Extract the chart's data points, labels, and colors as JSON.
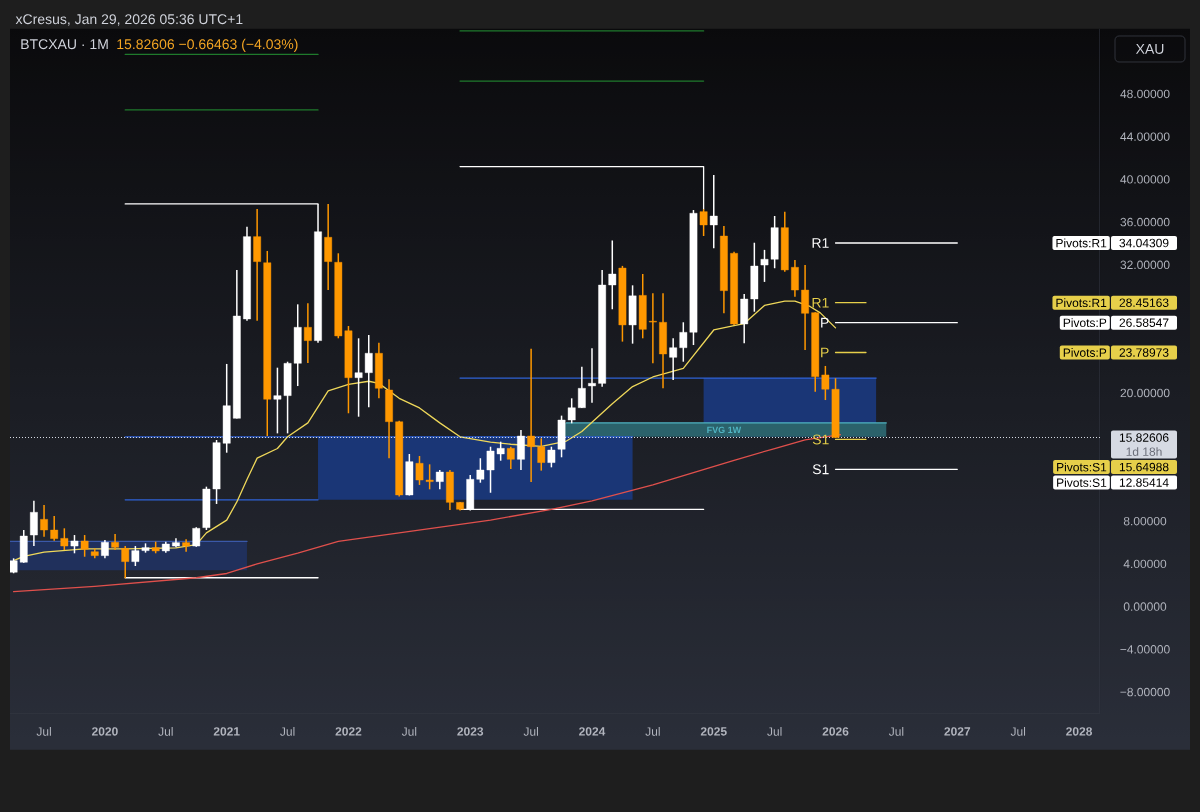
{
  "chart_data": {
    "type": "candlestick",
    "title": "BTCXAU · 1M",
    "subtitle": "15.82606 −0.66463 (−4.03%)",
    "ylabel": "XAU",
    "xlim": [
      "2019-03-21",
      "2028-03-03"
    ],
    "xticks": [
      {
        "value": "2019-07",
        "label": "Jul"
      },
      "2020",
      {
        "value": "2020-07",
        "label": "Jul"
      },
      "2021",
      {
        "value": "2021-07",
        "label": "Jul"
      },
      "2022",
      {
        "value": "2022-07",
        "label": "Jul"
      },
      "2023",
      {
        "value": "2023-07",
        "label": "Jul"
      },
      "2024",
      {
        "value": "2024-07",
        "label": "Jul"
      },
      "2025",
      {
        "value": "2025-07",
        "label": "Jul"
      },
      "2026",
      {
        "value": "2026-07",
        "label": "Jul"
      },
      "2027",
      {
        "value": "2027-07",
        "label": "Jul"
      },
      "2028"
    ],
    "ylim": [
      -10,
      54.1
    ],
    "yticks": [
      {
        "value": -8,
        "label": "−8.00000"
      },
      {
        "value": -4,
        "label": "−4.00000"
      },
      {
        "value": 0,
        "label": "0.00000"
      },
      {
        "value": 4,
        "label": "4.00000"
      },
      {
        "value": 8,
        "label": "8.00000"
      },
      {
        "value": 20,
        "label": "20.00000"
      },
      {
        "value": 32,
        "label": "32.00000"
      },
      {
        "value": 36,
        "label": "36.00000"
      },
      {
        "value": 40,
        "label": "40.00000"
      },
      {
        "value": 44,
        "label": "44.00000"
      },
      {
        "value": 48,
        "label": "48.00000"
      }
    ],
    "annotations": [
      "xCresus, Jan 29, 2026 05:36 UTC+1",
      "1d 18h",
      {
        "text": "R1",
        "x": "2026-01",
        "y": 34.04309
      },
      {
        "text": "R1",
        "x": "2026-01",
        "y": 28.45163
      },
      {
        "text": "P",
        "x": "2026-01",
        "y": 26.58547
      },
      {
        "text": "P",
        "x": "2026-01",
        "y": 23.78973
      },
      {
        "text": "S1",
        "x": "2026-01",
        "y": 15.64988
      },
      {
        "text": "S1",
        "x": "2026-01",
        "y": 12.85414
      },
      "34.04309",
      "28.45163",
      "26.58547",
      "23.78973",
      "15.64988",
      "12.85414"
    ],
    "ref_lines": [
      {
        "axis": "y",
        "value": 15.82606,
        "label": "15.82606",
        "line_style": "dotted",
        "color": "#d6dae3"
      }
    ],
    "series": [
      {
        "type": "line",
        "x": [
          "2019-03-21",
          "2021-03"
        ],
        "values": [
          6.1,
          6.1
        ],
        "lower": [
          3.4,
          3.4
        ],
        "upper": [
          6.1,
          6.1
        ],
        "color": "#3a58a8"
      },
      {
        "type": "line",
        "x": [
          "2020-03",
          "2021-10",
          "2024-05"
        ],
        "values": [
          15.9,
          15.9,
          15.9
        ],
        "lower": [
          null,
          10.0,
          10.0
        ],
        "upper": [
          null,
          15.9,
          15.9
        ],
        "color": "#2f62d6"
      },
      {
        "type": "line",
        "x": [
          "2022-12",
          "2024-12",
          "2026-05"
        ],
        "values": [
          21.4,
          21.4,
          21.4
        ],
        "lower": [
          null,
          15.9,
          15.9
        ],
        "upper": [
          null,
          21.4,
          21.4
        ],
        "color": "#2f62d6"
      },
      {
        "type": "line",
        "name": "FVG 1W",
        "x": [
          "2023-10",
          "2023-10-16",
          "2026-06"
        ],
        "values": [
          null,
          17.2,
          17.2
        ],
        "lower": [
          15.9,
          15.9,
          15.9
        ],
        "upper": [
          17.2,
          17.2,
          17.2
        ],
        "color": "#4fb3c2"
      },
      {
        "type": "line",
        "x": [
          "2020-03",
          "2021-10"
        ],
        "values": [
          10.0,
          10.0
        ],
        "color": "#2f62d6"
      },
      {
        "type": "line",
        "x": [
          "2020-03",
          "2021-10"
        ],
        "values": [
          37.7,
          37.7
        ],
        "color": "#ffffff"
      },
      {
        "type": "line",
        "x": [
          "2020-03",
          "2021-10"
        ],
        "values": [
          2.7,
          2.7
        ],
        "color": "#ffffff"
      },
      {
        "type": "line",
        "x": [
          "2022-12",
          "2024-12",
          "2024-12"
        ],
        "values": [
          41.2,
          41.2,
          37.2
        ],
        "color": "#ffffff"
      },
      {
        "type": "line",
        "x": [
          "2022-12",
          "2024-12"
        ],
        "values": [
          9.1,
          9.1
        ],
        "color": "#ffffff"
      },
      {
        "type": "line",
        "x": [
          "2020-03",
          "2021-10"
        ],
        "values": [
          51.7,
          51.7
        ],
        "color": "#1f7a2c"
      },
      {
        "type": "line",
        "x": [
          "2020-03",
          "2021-10"
        ],
        "values": [
          46.5,
          46.5
        ],
        "color": "#1f7a2c"
      },
      {
        "type": "line",
        "x": [
          "2022-12",
          "2024-12"
        ],
        "values": [
          53.9,
          53.9
        ],
        "color": "#1f7a2c"
      },
      {
        "type": "line",
        "x": [
          "2022-12",
          "2024-12"
        ],
        "values": [
          49.2,
          49.2
        ],
        "color": "#1f7a2c"
      },
      {
        "type": "line",
        "x": [
          "2019-04",
          "2019-05",
          "2019-07",
          "2019-11",
          "2020-03",
          "2020-08",
          "2020-10",
          "2020-11",
          "2021-01",
          "2021-02",
          "2021-03",
          "2021-04",
          "2021-06",
          "2021-07",
          "2021-09",
          "2021-11",
          "2022-01",
          "2022-03",
          "2022-04",
          "2022-06",
          "2022-08",
          "2022-10",
          "2022-12",
          "2023-03",
          "2023-05",
          "2023-08",
          "2023-10-16",
          "2023-12",
          "2024-03",
          "2024-05",
          "2024-07",
          "2024-10",
          "2025-01",
          "2025-03",
          "2025-04",
          "2025-06",
          "2025-08",
          "2025-09",
          "2025-10-16",
          "2025-11-16",
          "2026-01"
        ],
        "values": [
          4.3,
          4.7,
          5.1,
          5.4,
          5.4,
          5.5,
          5.8,
          6.9,
          8.1,
          9.8,
          11.9,
          13.9,
          14.8,
          15.9,
          17.2,
          20.2,
          20.8,
          21.1,
          20.9,
          19.5,
          18.6,
          17.2,
          15.9,
          15.4,
          15.2,
          15.0,
          15.5,
          16.4,
          19.0,
          20.6,
          21.5,
          22.3,
          25.9,
          26.3,
          26.5,
          28.2,
          28.6,
          28.6,
          28.1,
          27.5,
          26.1
        ],
        "color": "#efd85a"
      },
      {
        "type": "line",
        "x": [
          "2019-04",
          "2019-12",
          "2020-10",
          "2021-01",
          "2021-04",
          "2021-08",
          "2021-12",
          "2023-03",
          "2023-09",
          "2024-01",
          "2024-07",
          "2025-03",
          "2025-07",
          "2025-10",
          "2026-01-16"
        ],
        "values": [
          1.4,
          1.9,
          2.7,
          3.1,
          4.0,
          5.0,
          6.1,
          8.1,
          9.1,
          9.9,
          11.4,
          13.7,
          14.8,
          15.6,
          16.1
        ],
        "color": "#e0504c"
      },
      {
        "type": "line",
        "name": "Pivots:R1",
        "x": [
          "2026-01",
          "2027-01"
        ],
        "values": [
          34.04309,
          34.04309
        ],
        "color": "#ffffff"
      },
      {
        "type": "line",
        "name": "Pivots:R1",
        "x": [
          "2026-01",
          "2026-04"
        ],
        "values": [
          28.45163,
          28.45163
        ],
        "color": "#e6cf4a"
      },
      {
        "type": "line",
        "name": "Pivots:P",
        "x": [
          "2026-01",
          "2027-01"
        ],
        "values": [
          26.58547,
          26.58547
        ],
        "color": "#ffffff"
      },
      {
        "type": "line",
        "name": "Pivots:P",
        "x": [
          "2026-01",
          "2026-04"
        ],
        "values": [
          23.78973,
          23.78973
        ],
        "color": "#e6cf4a"
      },
      {
        "type": "line",
        "name": "Pivots:S1",
        "x": [
          "2026-01",
          "2026-04"
        ],
        "values": [
          15.64988,
          15.64988
        ],
        "color": "#e6cf4a"
      },
      {
        "type": "line",
        "name": "Pivots:S1",
        "x": [
          "2026-01",
          "2027-01"
        ],
        "values": [
          12.85414,
          12.85414
        ],
        "color": "#ffffff"
      },
      {
        "x": [
          "2019-04",
          "2019-05",
          "2019-06",
          "2019-07",
          "2019-08",
          "2019-09",
          "2019-10",
          "2019-11",
          "2019-12",
          "2020-01",
          "2020-02",
          "2020-03",
          "2020-04",
          "2020-05",
          "2020-06",
          "2020-07",
          "2020-08",
          "2020-09",
          "2020-10",
          "2020-11",
          "2020-12",
          "2021-01",
          "2021-02",
          "2021-03",
          "2021-04",
          "2021-05",
          "2021-06",
          "2021-07",
          "2021-08",
          "2021-09",
          "2021-10",
          "2021-11",
          "2021-12",
          "2022-01",
          "2022-02",
          "2022-03",
          "2022-04",
          "2022-05",
          "2022-06",
          "2022-07",
          "2022-08",
          "2022-09",
          "2022-10",
          "2022-11",
          "2022-12",
          "2023-01",
          "2023-02",
          "2023-03",
          "2023-04",
          "2023-05",
          "2023-06",
          "2023-07",
          "2023-08",
          "2023-09",
          "2023-10",
          "2023-11",
          "2023-12",
          "2024-01",
          "2024-02",
          "2024-03",
          "2024-04",
          "2024-05",
          "2024-06",
          "2024-07",
          "2024-08",
          "2024-09",
          "2024-10",
          "2024-11",
          "2024-12",
          "2025-01",
          "2025-02",
          "2025-03",
          "2025-04",
          "2025-05",
          "2025-06",
          "2025-07",
          "2025-08",
          "2025-09",
          "2025-10",
          "2025-11",
          "2025-12",
          "2026-01"
        ],
        "ohlc": [
          [
            3.21,
            4.52,
            3.12,
            4.3
          ],
          [
            4.15,
            7.17,
            4.1,
            6.61
          ],
          [
            6.7,
            9.92,
            5.67,
            8.83
          ],
          [
            8.17,
            9.51,
            6.55,
            7.17
          ],
          [
            7.17,
            8.48,
            6.17,
            6.36
          ],
          [
            6.39,
            7.33,
            5.3,
            5.67
          ],
          [
            5.67,
            6.7,
            4.99,
            6.14
          ],
          [
            6.14,
            6.7,
            4.67,
            5.36
          ],
          [
            5.14,
            5.45,
            4.52,
            4.77
          ],
          [
            4.77,
            6.24,
            4.52,
            6.02
          ],
          [
            6.02,
            6.8,
            5.3,
            5.55
          ],
          [
            5.45,
            5.67,
            2.65,
            4.21
          ],
          [
            4.21,
            5.67,
            3.8,
            5.24
          ],
          [
            5.24,
            5.92,
            5.05,
            5.52
          ],
          [
            5.52,
            6.08,
            4.99,
            5.21
          ],
          [
            5.21,
            6.08,
            5.05,
            5.86
          ],
          [
            5.67,
            6.39,
            5.55,
            5.99
          ],
          [
            5.99,
            6.3,
            5.14,
            5.67
          ],
          [
            5.67,
            7.43,
            5.6,
            7.33
          ],
          [
            7.39,
            11.23,
            7.17,
            11.01
          ],
          [
            11.01,
            15.6,
            9.61,
            15.35
          ],
          [
            15.29,
            22.72,
            14.41,
            18.81
          ],
          [
            17.63,
            31.52,
            17.6,
            27.21
          ],
          [
            26.93,
            35.57,
            26.77,
            34.64
          ],
          [
            34.64,
            37.23,
            26.77,
            32.3
          ],
          [
            32.2,
            33.3,
            15.97,
            19.41
          ],
          [
            19.41,
            22.37,
            16.22,
            19.75
          ],
          [
            19.75,
            22.93,
            16.22,
            22.78
          ],
          [
            22.78,
            28.3,
            20.65,
            26.15
          ],
          [
            26.15,
            28.4,
            22.8,
            24.9
          ],
          [
            24.9,
            37.7,
            24.71,
            35.1
          ],
          [
            34.58,
            37.7,
            29.64,
            32.3
          ],
          [
            32.24,
            33.08,
            25.12,
            25.34
          ],
          [
            25.83,
            26.27,
            18.1,
            21.43
          ],
          [
            21.43,
            25.12,
            17.78,
            21.9
          ],
          [
            21.9,
            25.43,
            18.66,
            23.72
          ],
          [
            23.72,
            24.71,
            19.5,
            20.44
          ],
          [
            20.28,
            21.28,
            13.89,
            17.31
          ],
          [
            17.31,
            17.4,
            10.3,
            10.45
          ],
          [
            10.45,
            14.29,
            10.4,
            13.57
          ],
          [
            13.42,
            14.1,
            11.39,
            11.85
          ],
          [
            11.85,
            13.32,
            10.98,
            11.7
          ],
          [
            11.7,
            12.79,
            10.98,
            12.6
          ],
          [
            12.6,
            12.79,
            9.04,
            9.76
          ],
          [
            9.76,
            9.8,
            9.0,
            9.11
          ],
          [
            9.11,
            12.32,
            9.0,
            11.92
          ],
          [
            11.92,
            13.89,
            11.6,
            12.79
          ],
          [
            12.79,
            14.97,
            10.66,
            14.57
          ],
          [
            14.29,
            15.44,
            13.66,
            14.82
          ],
          [
            14.82,
            14.97,
            12.88,
            13.79
          ],
          [
            13.79,
            16.53,
            12.79,
            15.97
          ],
          [
            15.97,
            24.15,
            11.67,
            14.97
          ],
          [
            14.97,
            15.76,
            12.73,
            13.48
          ],
          [
            13.48,
            14.97,
            13.04,
            14.66
          ],
          [
            14.73,
            17.88,
            13.98,
            17.47
          ],
          [
            17.47,
            19.5,
            17.16,
            18.62
          ],
          [
            18.62,
            22.46,
            18.6,
            20.44
          ],
          [
            20.66,
            24.18,
            19.09,
            20.91
          ],
          [
            20.9,
            31.52,
            20.59,
            30.11
          ],
          [
            30.11,
            34.28,
            27.84,
            31.14
          ],
          [
            31.7,
            31.9,
            24.81,
            26.37
          ],
          [
            26.37,
            30.08,
            24.62,
            29.1
          ],
          [
            29.14,
            31.14,
            25.12,
            25.96
          ],
          [
            26.72,
            29.33,
            22.78,
            26.64
          ],
          [
            26.62,
            29.33,
            20.44,
            23.65
          ],
          [
            23.34,
            25.12,
            21.22,
            24.24
          ],
          [
            24.24,
            26.62,
            22.93,
            25.68
          ],
          [
            25.68,
            37.13,
            24.49,
            36.83
          ],
          [
            36.98,
            37.2,
            34.7,
            35.73
          ],
          [
            35.73,
            40.41,
            33.55,
            36.57
          ],
          [
            34.7,
            35.64,
            27.46,
            29.58
          ],
          [
            33.08,
            33.23,
            26.37,
            26.46
          ],
          [
            26.46,
            29.27,
            24.65,
            28.8
          ],
          [
            28.8,
            34.07,
            27.61,
            31.89
          ],
          [
            31.98,
            33.4,
            30.4,
            32.52
          ],
          [
            32.52,
            36.57,
            31.68,
            35.48
          ],
          [
            35.48,
            36.98,
            31.36,
            31.52
          ],
          [
            31.77,
            32.45,
            29.02,
            29.64
          ],
          [
            29.64,
            31.98,
            24.03,
            27.46
          ],
          [
            27.52,
            27.55,
            20.12,
            21.53
          ],
          [
            21.69,
            22.53,
            19.34,
            20.35
          ],
          [
            20.35,
            21.38,
            15.8,
            15.82606
          ]
        ],
        "colors": [
          "#ffffff",
          "#ffffff",
          "#ffffff",
          "#ff9800",
          "#ff9800",
          "#ff9800",
          "#ffffff",
          "#ff9800",
          "#ff9800",
          "#ffffff",
          "#ff9800",
          "#ff9800",
          "#ffffff",
          "#ffffff",
          "#ff9800",
          "#ffffff",
          "#ffffff",
          "#ff9800",
          "#ffffff",
          "#ffffff",
          "#ffffff",
          "#ffffff",
          "#ffffff",
          "#ffffff",
          "#ff9800",
          "#ff9800",
          "#ffffff",
          "#ffffff",
          "#ffffff",
          "#ff9800",
          "#ffffff",
          "#ff9800",
          "#ff9800",
          "#ff9800",
          "#ffffff",
          "#ffffff",
          "#ff9800",
          "#ff9800",
          "#ff9800",
          "#ffffff",
          "#ff9800",
          "#ff9800",
          "#ffffff",
          "#ff9800",
          "#ff9800",
          "#ffffff",
          "#ffffff",
          "#ffffff",
          "#ffffff",
          "#ff9800",
          "#ffffff",
          "#ff9800",
          "#ff9800",
          "#ffffff",
          "#ffffff",
          "#ffffff",
          "#ffffff",
          "#ffffff",
          "#ffffff",
          "#ffffff",
          "#ff9800",
          "#ffffff",
          "#ff9800",
          "#ff9800",
          "#ff9800",
          "#ffffff",
          "#ffffff",
          "#ffffff",
          "#ff9800",
          "#ffffff",
          "#ff9800",
          "#ff9800",
          "#ffffff",
          "#ffffff",
          "#ffffff",
          "#ffffff",
          "#ff9800",
          "#ff9800",
          "#ff9800",
          "#ff9800",
          "#ff9800",
          "#ff9800"
        ]
      }
    ]
  }
}
